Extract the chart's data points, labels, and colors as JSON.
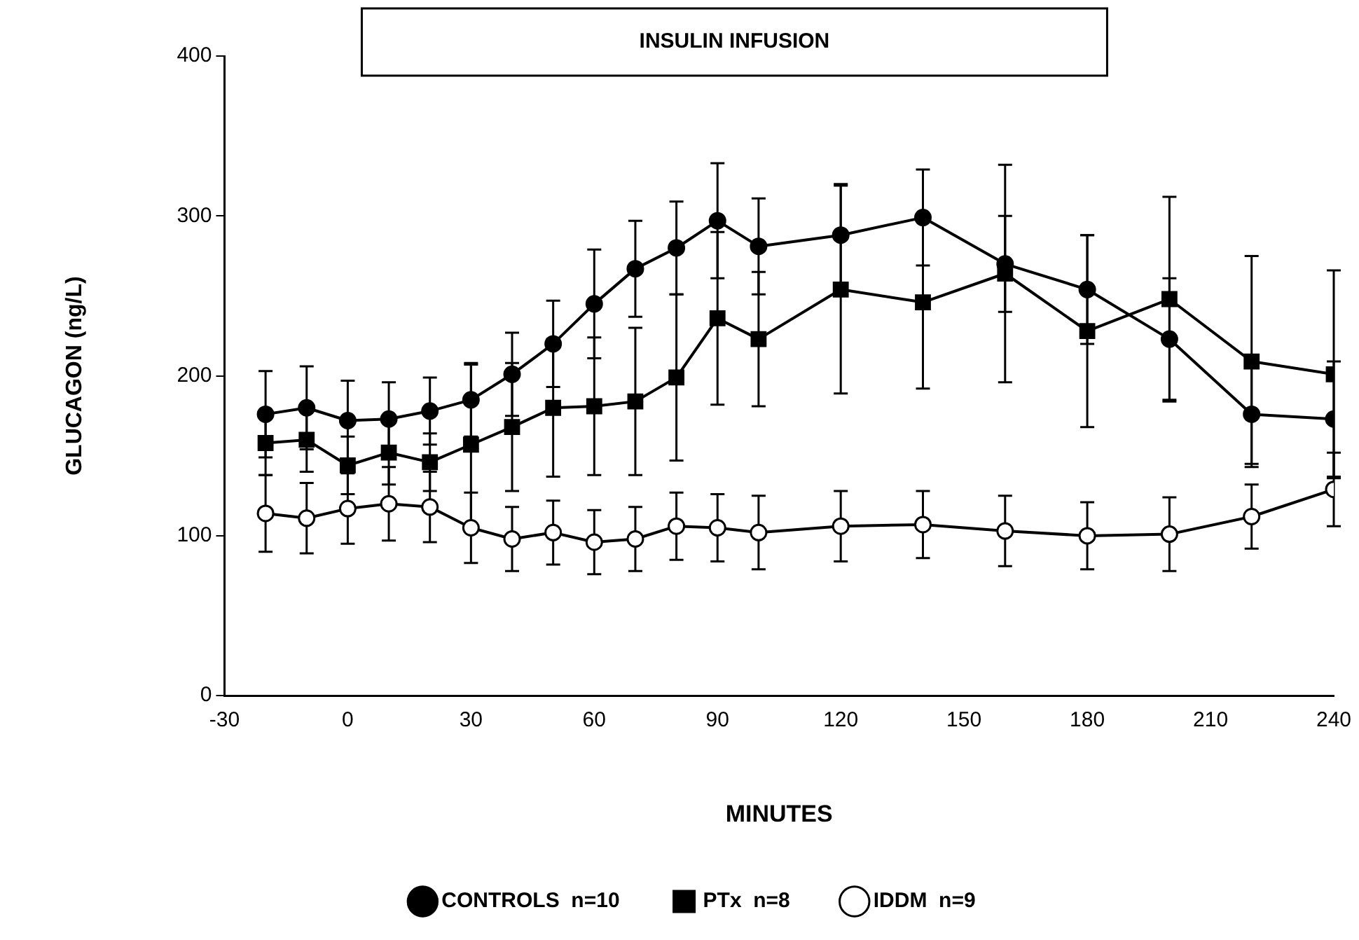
{
  "chart_data": {
    "type": "line",
    "title": "INSULIN INFUSION",
    "xlabel": "MINUTES",
    "ylabel": "GLUCAGON (ng/L)",
    "x": [
      -20,
      -10,
      0,
      10,
      20,
      30,
      40,
      50,
      60,
      70,
      80,
      90,
      100,
      120,
      140,
      160,
      180,
      200,
      220,
      240
    ],
    "series": [
      {
        "name": "CONTROLS  n=10",
        "color": "#000000",
        "marker": "circle",
        "values": [
          176,
          180,
          172,
          173,
          178,
          185,
          201,
          220,
          245,
          267,
          280,
          297,
          281,
          288,
          299,
          270,
          254,
          223,
          176,
          173
        ],
        "errors": [
          27,
          26,
          25,
          23,
          21,
          23,
          26,
          27,
          34,
          30,
          29,
          36,
          30,
          32,
          30,
          30,
          34,
          38,
          31,
          36
        ]
      },
      {
        "name": "PTx  n=8",
        "color": "#000000",
        "marker": "square",
        "values": [
          158,
          160,
          144,
          152,
          146,
          157,
          168,
          180,
          181,
          184,
          199,
          236,
          223,
          254,
          246,
          264,
          228,
          248,
          209,
          201
        ],
        "errors": [
          20,
          20,
          18,
          20,
          18,
          50,
          40,
          43,
          43,
          46,
          52,
          54,
          42,
          65,
          54,
          68,
          60,
          64,
          66,
          65
        ]
      },
      {
        "name": "IDDM  n=9",
        "color": "#000000",
        "marker": "circle",
        "values": [
          114,
          111,
          117,
          120,
          118,
          105,
          98,
          102,
          96,
          98,
          106,
          105,
          102,
          106,
          107,
          103,
          100,
          101,
          112,
          129
        ],
        "errors": [
          24,
          22,
          22,
          23,
          22,
          22,
          20,
          20,
          20,
          20,
          21,
          21,
          23,
          22,
          21,
          22,
          21,
          23,
          20,
          23
        ]
      }
    ],
    "xlim": [
      -30,
      240
    ],
    "xticks": [
      -30,
      0,
      30,
      60,
      90,
      120,
      150,
      180,
      210,
      240
    ],
    "ylim": [
      0,
      400
    ],
    "yticks": [
      0,
      100,
      200,
      300,
      400
    ],
    "grid": false,
    "legend": "bottom",
    "line_style": "solid"
  }
}
